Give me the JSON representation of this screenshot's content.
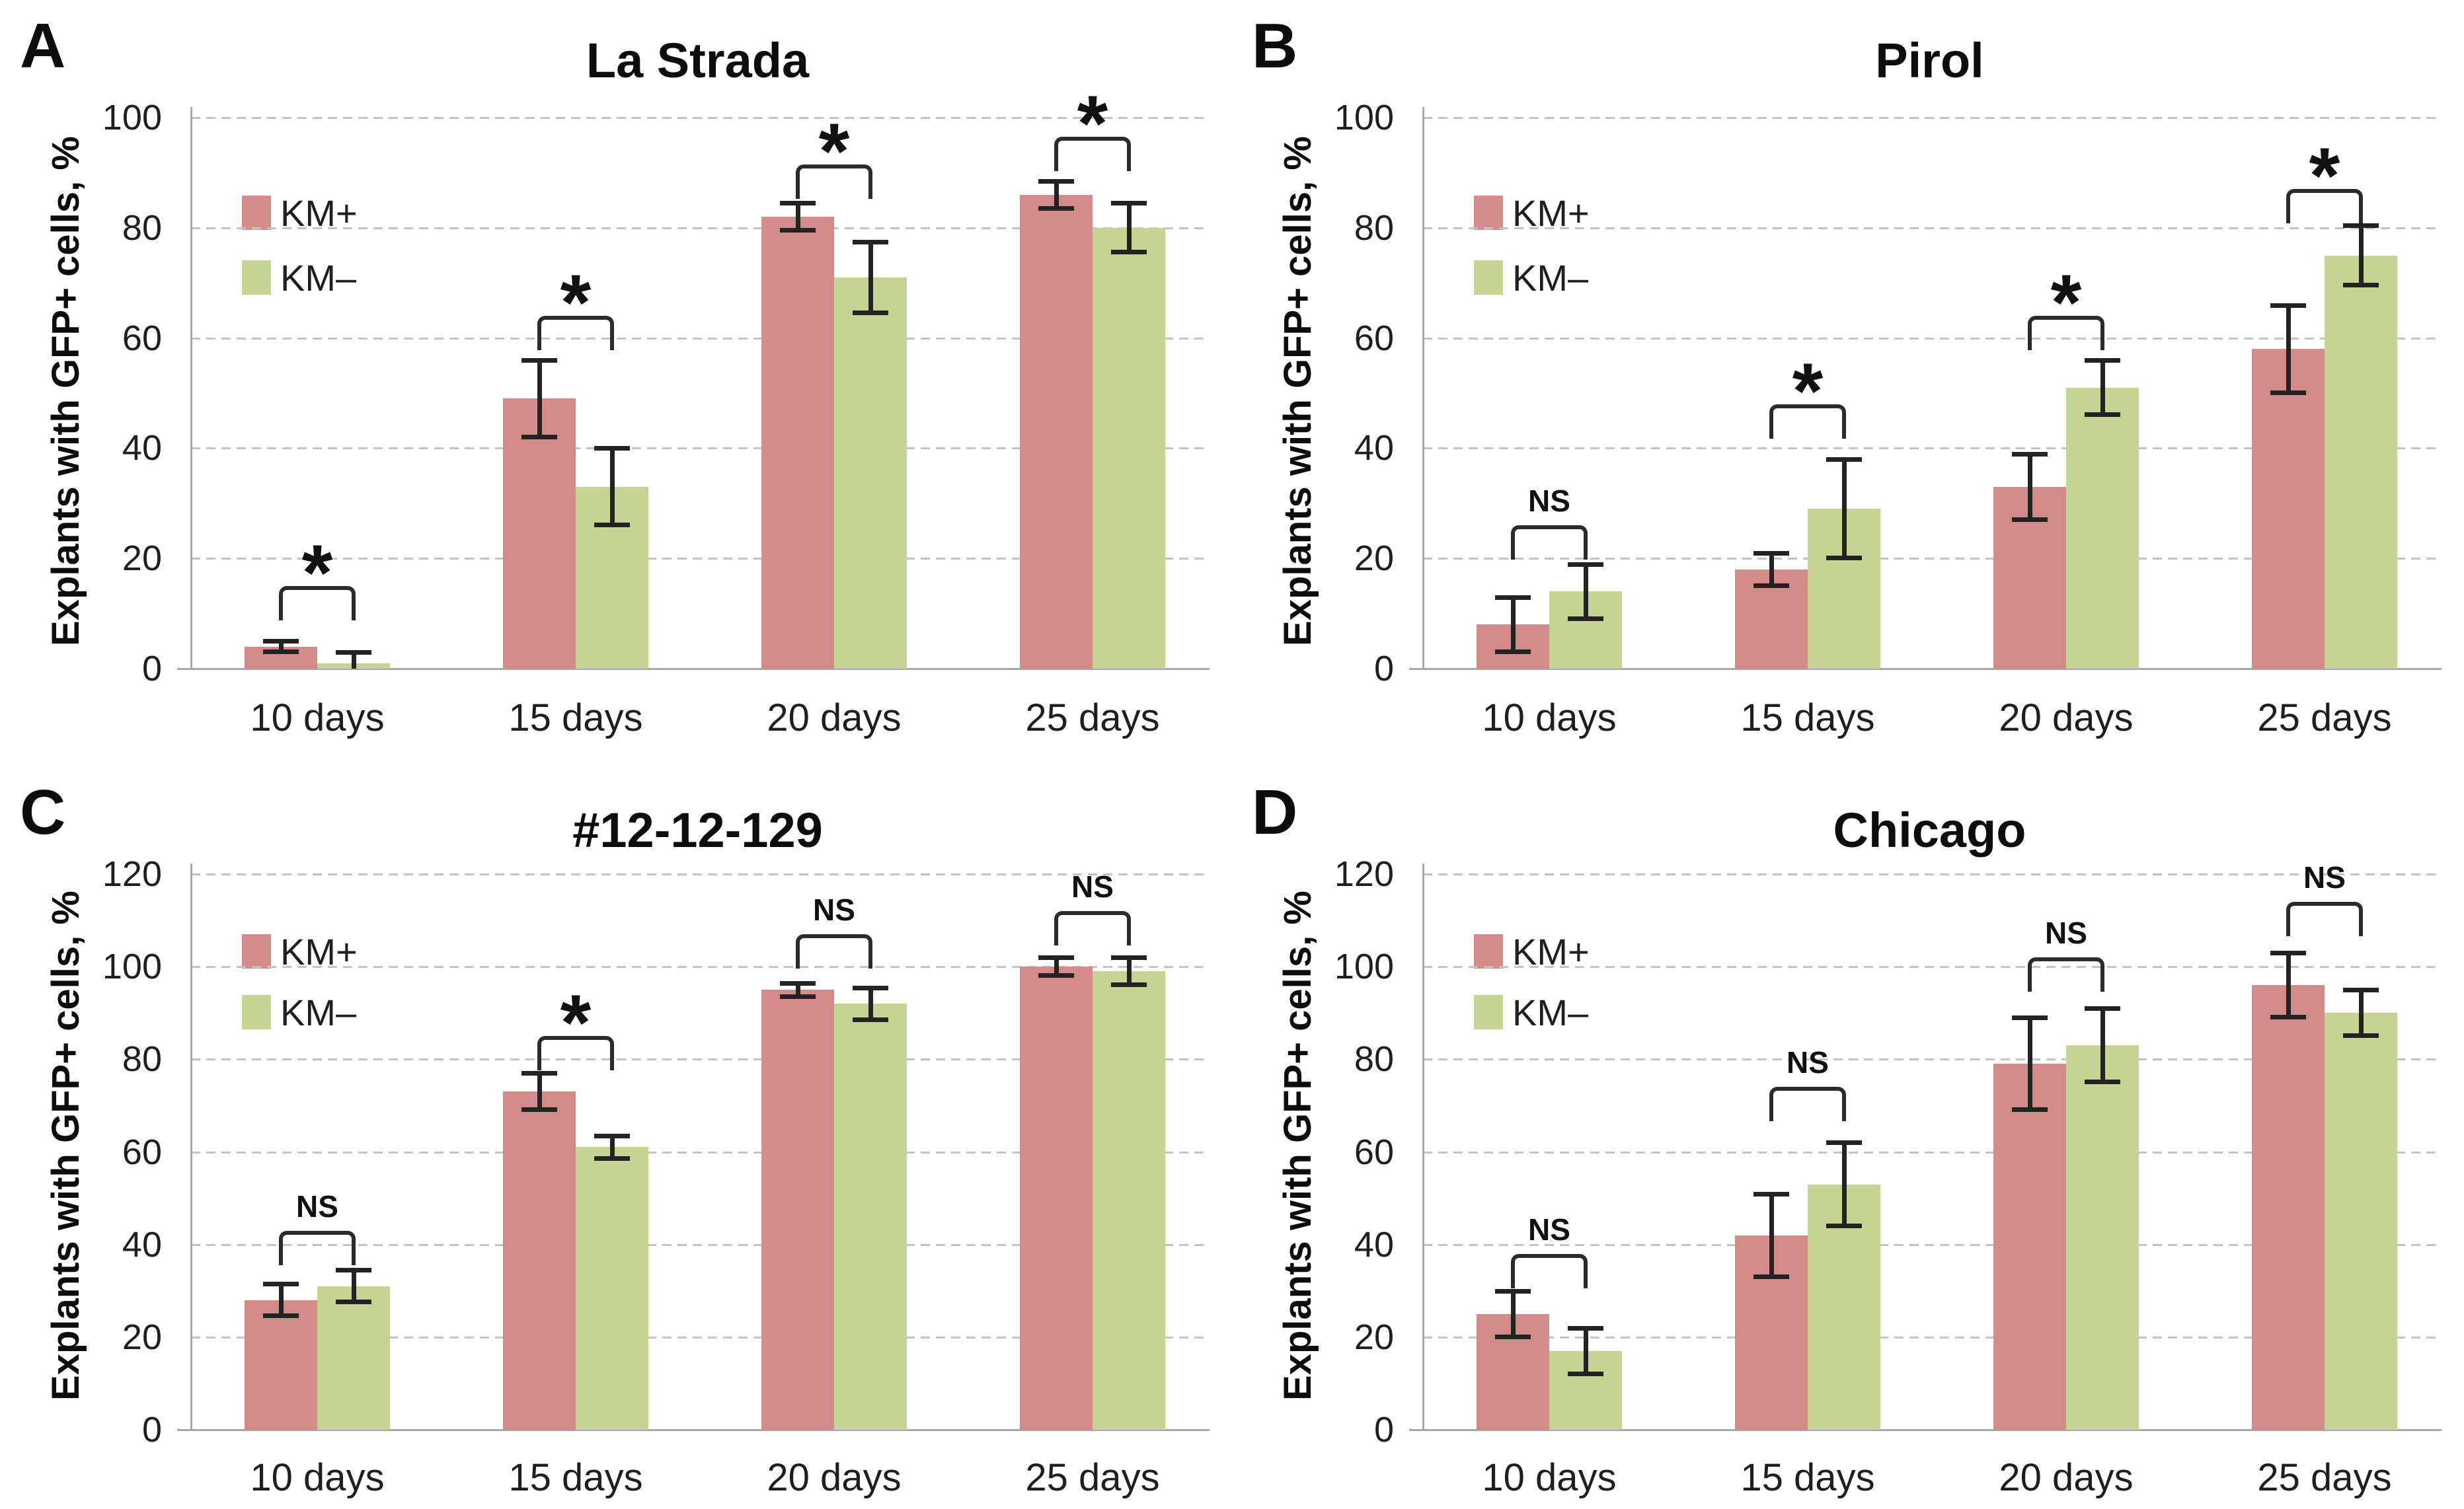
{
  "figure": {
    "ylabel": "Explants with GFP+ cells, %",
    "categories": [
      "10 days",
      "15 days",
      "20 days",
      "25 days"
    ],
    "legend": {
      "series1": "KM+",
      "series2": "KM–"
    },
    "colors": {
      "km_plus_fill": "#d28b88",
      "km_minus_fill": "#c5d492",
      "error_bar": "#232323",
      "gridline": "#c3c3c3",
      "axis_line": "#a8a8a8",
      "text": "#1f1f1f"
    }
  },
  "chart_data": [
    {
      "type": "bar",
      "panel_letter": "A",
      "title": "La Strada",
      "xlabel": "",
      "ylabel": "Explants with GFP+ cells, %",
      "ylim": [
        0,
        100
      ],
      "ytick_step": 20,
      "grid": true,
      "legend_position": "upper-left-inside",
      "categories": [
        "10 days",
        "15 days",
        "20 days",
        "25 days"
      ],
      "series": [
        {
          "name": "KM+",
          "values": [
            4,
            49,
            82,
            86
          ],
          "errors": [
            1,
            7,
            2.5,
            2.5
          ]
        },
        {
          "name": "KM–",
          "values": [
            1,
            33,
            71,
            80
          ],
          "errors": [
            2,
            7,
            6.5,
            4.5
          ]
        }
      ],
      "significance": [
        {
          "label": "*",
          "y": 15
        },
        {
          "label": "*",
          "y": 64
        },
        {
          "label": "*",
          "y": 91.5
        },
        {
          "label": "*",
          "y": 96.5
        }
      ]
    },
    {
      "type": "bar",
      "panel_letter": "B",
      "title": "Pirol",
      "xlabel": "",
      "ylabel": "Explants with GFP+ cells, %",
      "ylim": [
        0,
        100
      ],
      "ytick_step": 20,
      "grid": true,
      "legend_position": "upper-left-inside",
      "categories": [
        "10 days",
        "15 days",
        "20 days",
        "25 days"
      ],
      "series": [
        {
          "name": "KM+",
          "values": [
            8,
            18,
            33,
            58
          ],
          "errors": [
            5,
            3,
            6,
            8
          ]
        },
        {
          "name": "KM–",
          "values": [
            14,
            29,
            51,
            75
          ],
          "errors": [
            5,
            9,
            5,
            5.5
          ]
        }
      ],
      "significance": [
        {
          "label": "NS",
          "y": 26
        },
        {
          "label": "*",
          "y": 48
        },
        {
          "label": "*",
          "y": 64
        },
        {
          "label": "*",
          "y": 87
        }
      ]
    },
    {
      "type": "bar",
      "panel_letter": "C",
      "title": "#12-12-129",
      "xlabel": "",
      "ylabel": "Explants with GFP+ cells, %",
      "ylim": [
        0,
        120
      ],
      "ytick_step": 20,
      "grid": true,
      "legend_position": "upper-left-inside",
      "categories": [
        "10 days",
        "15 days",
        "20 days",
        "25 days"
      ],
      "series": [
        {
          "name": "KM+",
          "values": [
            28,
            73,
            95,
            100
          ],
          "errors": [
            3.5,
            4,
            1.5,
            2
          ]
        },
        {
          "name": "KM–",
          "values": [
            31,
            61,
            92,
            99
          ],
          "errors": [
            3.5,
            2.5,
            3.5,
            3
          ]
        }
      ],
      "significance": [
        {
          "label": "NS",
          "y": 43
        },
        {
          "label": "*",
          "y": 85
        },
        {
          "label": "NS",
          "y": 107
        },
        {
          "label": "NS",
          "y": 112
        }
      ]
    },
    {
      "type": "bar",
      "panel_letter": "D",
      "title": "Chicago",
      "xlabel": "",
      "ylabel": "Explants with GFP+ cells, %",
      "ylim": [
        0,
        120
      ],
      "ytick_step": 20,
      "grid": true,
      "legend_position": "upper-left-inside",
      "categories": [
        "10 days",
        "15 days",
        "20 days",
        "25 days"
      ],
      "series": [
        {
          "name": "KM+",
          "values": [
            25,
            42,
            79,
            96
          ],
          "errors": [
            5,
            9,
            10,
            7
          ]
        },
        {
          "name": "KM–",
          "values": [
            17,
            53,
            83,
            90
          ],
          "errors": [
            5,
            9,
            8,
            5
          ]
        }
      ],
      "significance": [
        {
          "label": "NS",
          "y": 38
        },
        {
          "label": "NS",
          "y": 74
        },
        {
          "label": "NS",
          "y": 102
        },
        {
          "label": "NS",
          "y": 114
        }
      ]
    }
  ]
}
